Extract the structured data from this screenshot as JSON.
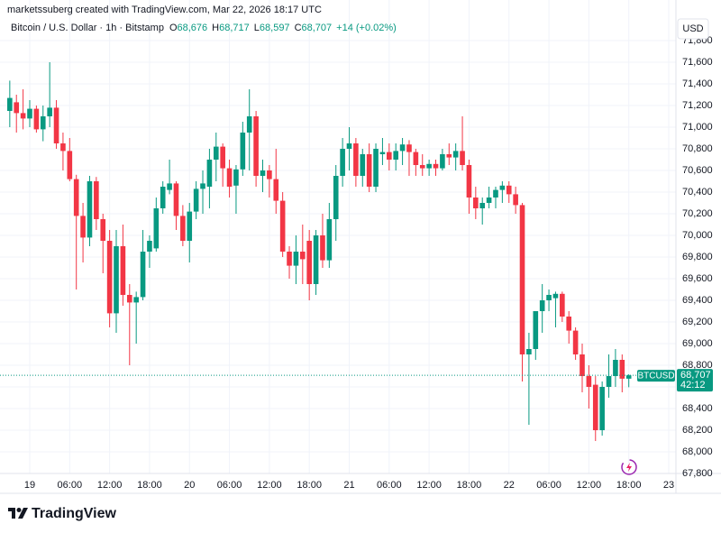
{
  "header": {
    "attribution": "marketssuberg created with TradingView.com, Mar 22, 2026 18:17 UTC",
    "symbol": "Bitcoin / U.S. Dollar · 1h · Bitstamp",
    "ohlc": [
      {
        "key": "O",
        "value": "68,676"
      },
      {
        "key": "H",
        "value": "68,717"
      },
      {
        "key": "L",
        "value": "68,597"
      },
      {
        "key": "C",
        "value": "68,707"
      }
    ],
    "change": "+14 (+0.02%)"
  },
  "chart_data": {
    "type": "candlestick",
    "categories": [
      null,
      null,
      null,
      "19",
      null,
      null,
      null,
      null,
      null,
      "06:00",
      null,
      null,
      null,
      null,
      null,
      "12:00",
      null,
      null,
      null,
      null,
      null,
      "18:00",
      null,
      null,
      null,
      null,
      null,
      "20",
      null,
      null,
      null,
      null,
      null,
      "06:00",
      null,
      null,
      null,
      null,
      null,
      "12:00",
      null,
      null,
      null,
      null,
      null,
      "18:00",
      null,
      null,
      null,
      null,
      null,
      "21",
      null,
      null,
      null,
      null,
      null,
      "06:00",
      null,
      null,
      null,
      null,
      null,
      "12:00",
      null,
      null,
      null,
      null,
      null,
      "18:00",
      null,
      null,
      null,
      null,
      null,
      "22",
      null,
      null,
      null,
      null,
      null,
      "06:00",
      null,
      null,
      null,
      null,
      null,
      "12:00",
      null,
      null,
      null,
      null,
      null,
      "18:00",
      null,
      null,
      null,
      null,
      null,
      "23"
    ],
    "open": [
      71150,
      71230,
      71130,
      71080,
      71170,
      70980,
      71100,
      71180,
      70850,
      70780,
      70520,
      70180,
      69980,
      70500,
      70150,
      69950,
      69280,
      69900,
      69450,
      69380,
      69430,
      69850,
      69880,
      70250,
      70420,
      70480,
      70180,
      69950,
      70220,
      70430,
      70450,
      70700,
      70820,
      70620,
      70460,
      70610,
      70950,
      71100,
      70550,
      70600,
      70520,
      70320,
      69850,
      69720,
      69850,
      69950,
      69550,
      70000,
      69770,
      70150,
      70550,
      70800,
      70850,
      70550,
      70750,
      70450,
      70750,
      70770,
      70700,
      70780,
      70840,
      70770,
      70650,
      70620,
      70660,
      70620,
      70750,
      70720,
      70780,
      70650,
      70350,
      70250,
      70300,
      70350,
      70420,
      70460,
      70380,
      70280,
      68900,
      68950,
      69300,
      69400,
      69420,
      69460,
      69250,
      69120,
      68900,
      68700,
      68620,
      68200,
      68600,
      68700,
      68850,
      68676,
      null,
      null,
      null,
      null,
      null,
      null
    ],
    "high": [
      71430,
      71300,
      71350,
      71250,
      71200,
      71200,
      71600,
      71250,
      70950,
      70900,
      70560,
      70300,
      70550,
      70540,
      70200,
      70050,
      70050,
      70100,
      69550,
      69480,
      70050,
      70000,
      70350,
      70500,
      70700,
      70500,
      70280,
      70300,
      70500,
      70600,
      70800,
      70950,
      70850,
      70700,
      70650,
      71050,
      71350,
      71150,
      70700,
      70650,
      70800,
      70400,
      69900,
      70000,
      70100,
      70050,
      70050,
      70200,
      70300,
      70650,
      70900,
      71000,
      70900,
      70800,
      70850,
      70850,
      70900,
      70850,
      70850,
      70900,
      70880,
      70800,
      70750,
      70700,
      70700,
      70800,
      70850,
      70850,
      71100,
      70700,
      70450,
      70350,
      70450,
      70450,
      70500,
      70500,
      70450,
      70300,
      69100,
      69300,
      69550,
      69500,
      69480,
      69480,
      69300,
      69150,
      69000,
      68800,
      68700,
      68650,
      68900,
      68950,
      68900,
      68717,
      null,
      null,
      null,
      null,
      null,
      null
    ],
    "low": [
      71000,
      70950,
      70980,
      71000,
      70950,
      70870,
      71000,
      70800,
      70600,
      70500,
      69500,
      69750,
      69900,
      70050,
      69650,
      69150,
      69100,
      69350,
      68800,
      69000,
      69400,
      69700,
      69850,
      70200,
      70380,
      70050,
      69900,
      69750,
      70150,
      70200,
      70250,
      70500,
      70450,
      70350,
      70200,
      70550,
      70600,
      70450,
      70400,
      70350,
      70200,
      69800,
      69600,
      69550,
      69550,
      69400,
      69450,
      69700,
      69700,
      69950,
      70450,
      70600,
      70450,
      70450,
      70400,
      70400,
      70650,
      70600,
      70600,
      70650,
      70550,
      70550,
      70550,
      70550,
      70550,
      70600,
      70650,
      70600,
      70600,
      70200,
      70150,
      70100,
      70250,
      70250,
      70300,
      70300,
      70200,
      68650,
      68250,
      68850,
      69100,
      69300,
      69150,
      69200,
      69000,
      68850,
      68550,
      68400,
      68100,
      68150,
      68500,
      68600,
      68550,
      68597,
      null,
      null,
      null,
      null,
      null,
      null
    ],
    "close": [
      71270,
      71130,
      71080,
      71170,
      70980,
      71100,
      71180,
      70850,
      70780,
      70520,
      70180,
      69980,
      70500,
      70150,
      69950,
      69280,
      69900,
      69450,
      69380,
      69430,
      69850,
      69950,
      70250,
      70450,
      70480,
      70180,
      69950,
      70220,
      70430,
      70480,
      70700,
      70820,
      70620,
      70450,
      70610,
      70950,
      71100,
      70550,
      70600,
      70520,
      70320,
      69850,
      69720,
      69850,
      69780,
      69550,
      70000,
      69770,
      70150,
      70550,
      70800,
      70850,
      70550,
      70750,
      70450,
      70800,
      70770,
      70700,
      70780,
      70840,
      70770,
      70650,
      70620,
      70660,
      70620,
      70750,
      70720,
      70780,
      70650,
      70350,
      70250,
      70300,
      70350,
      70420,
      70460,
      70380,
      70280,
      68900,
      68950,
      69300,
      69400,
      69450,
      69460,
      69250,
      69120,
      68900,
      68700,
      68600,
      68200,
      68600,
      68700,
      68850,
      68676,
      68707,
      null,
      null,
      null,
      null,
      null,
      null
    ],
    "up_color": "#089981",
    "down_color": "#f23645",
    "ylim": [
      67800,
      72000
    ],
    "yticks": [
      {
        "value": 67800,
        "label": "67,800"
      },
      {
        "value": 68000,
        "label": "68,000"
      },
      {
        "value": 68200,
        "label": "68,200"
      },
      {
        "value": 68400,
        "label": "68,400"
      },
      {
        "value": 68600,
        "label": "68,600"
      },
      {
        "value": 68800,
        "label": "68,800"
      },
      {
        "value": 69000,
        "label": "69,000"
      },
      {
        "value": 69200,
        "label": "69,200"
      },
      {
        "value": 69400,
        "label": "69,400"
      },
      {
        "value": 69600,
        "label": "69,600"
      },
      {
        "value": 69800,
        "label": "69,800"
      },
      {
        "value": 70000,
        "label": "70,000"
      },
      {
        "value": 70200,
        "label": "70,200"
      },
      {
        "value": 70400,
        "label": "70,400"
      },
      {
        "value": 70600,
        "label": "70,600"
      },
      {
        "value": 70800,
        "label": "70,800"
      },
      {
        "value": 71000,
        "label": "71,000"
      },
      {
        "value": 71200,
        "label": "71,200"
      },
      {
        "value": 71400,
        "label": "71,400"
      },
      {
        "value": 71600,
        "label": "71,600"
      },
      {
        "value": 71800,
        "label": "71,800"
      }
    ],
    "grid": true,
    "currency": "USD",
    "last_price": {
      "symbol": "BTCUSD",
      "value": 68707,
      "label": "68,707",
      "countdown": "42:12"
    }
  },
  "footer": {
    "brand": "TradingView"
  }
}
